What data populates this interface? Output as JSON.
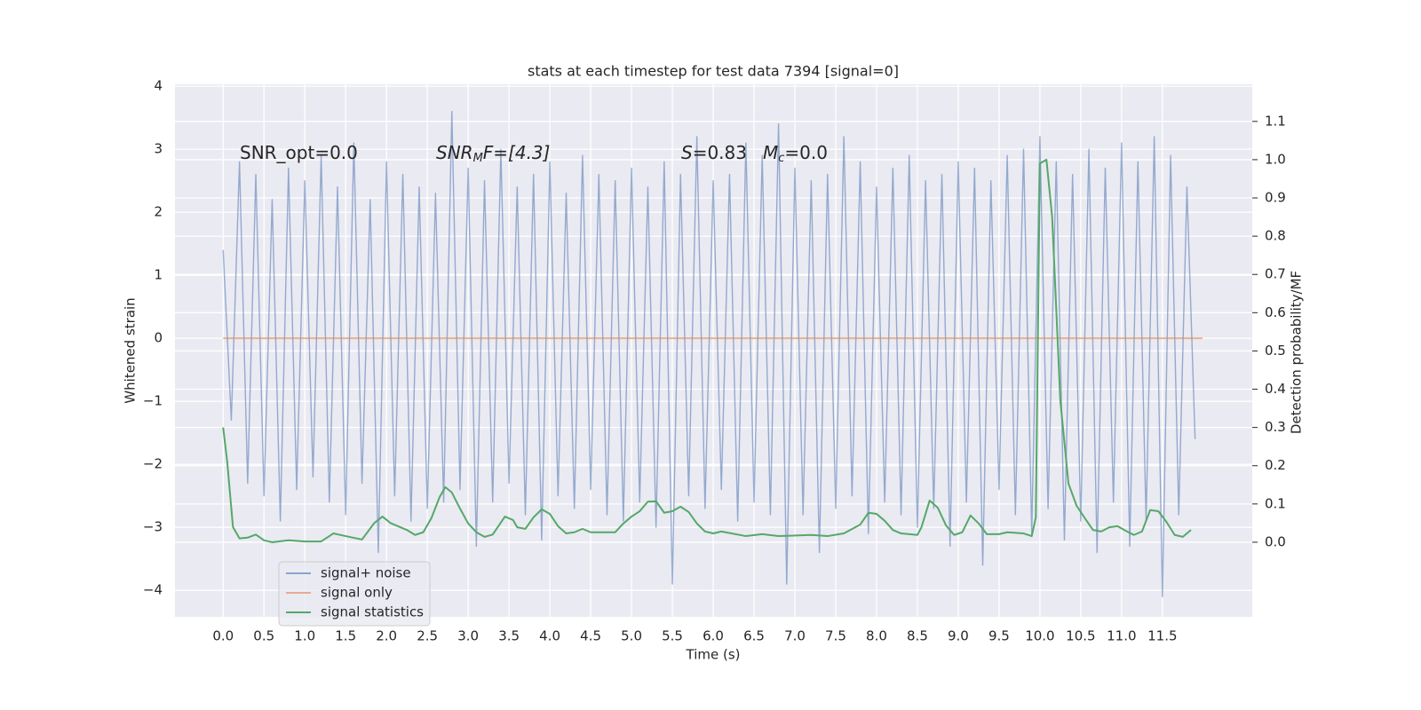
{
  "chart_data": {
    "type": "line",
    "title": "stats at each timestep for test data 7394 [signal=0]",
    "xlabel": "Time (s)",
    "ylabel": "Whitened strain",
    "y2label": "Detection probability/MF",
    "xlim": [
      -0.59,
      12.6
    ],
    "ylim": [
      -4.42,
      4.03
    ],
    "y2lim": [
      -0.195,
      1.197
    ],
    "xticks": [
      {
        "value": 0,
        "label": "0.0"
      },
      0.5,
      {
        "value": 1,
        "label": "1.0"
      },
      1.5,
      {
        "value": 2,
        "label": "2.0"
      },
      2.5,
      {
        "value": 3,
        "label": "3.0"
      },
      3.5,
      {
        "value": 4,
        "label": "4.0"
      },
      4.5,
      {
        "value": 5,
        "label": "5.0"
      },
      5.5,
      {
        "value": 6,
        "label": "6.0"
      },
      6.5,
      {
        "value": 7,
        "label": "7.0"
      },
      7.5,
      {
        "value": 8,
        "label": "8.0"
      },
      8.5,
      {
        "value": 9,
        "label": "9.0"
      },
      9.5,
      {
        "value": 10,
        "label": "10.0"
      },
      10.5,
      {
        "value": 11,
        "label": "11.0"
      },
      11.5
    ],
    "yticks": [
      {
        "value": -4,
        "label": "−4"
      },
      {
        "value": -3,
        "label": "−3"
      },
      {
        "value": -2,
        "label": "−2"
      },
      {
        "value": -1,
        "label": "−1"
      },
      0,
      1,
      2,
      3,
      4
    ],
    "y2ticks": [
      {
        "value": 0,
        "label": "0.0"
      },
      0.1,
      0.2,
      0.3,
      0.4,
      0.5,
      0.6,
      0.7,
      0.8,
      0.9,
      {
        "value": 1,
        "label": "1.0"
      },
      1.1
    ],
    "grid": true,
    "legend": "lower left",
    "annotations": [
      {
        "text": "SNR_opt=0.0"
      },
      {
        "text": "SNR",
        "sub": "M",
        "tail": "F=[4.3]"
      },
      {
        "text": "S",
        "tail": "=0.83"
      },
      {
        "text": "M",
        "sub": "c",
        "tail": "=0.0"
      }
    ],
    "series": [
      {
        "name": "signal+ noise",
        "color": "#4c72b0",
        "x": [
          0.0,
          0.1,
          0.2,
          0.3,
          0.4,
          0.5,
          0.6,
          0.7,
          0.8,
          0.9,
          1.0,
          1.1,
          1.2,
          1.3,
          1.4,
          1.5,
          1.6,
          1.7,
          1.8,
          1.9,
          2.0,
          2.1,
          2.2,
          2.3,
          2.4,
          2.5,
          2.6,
          2.7,
          2.8,
          2.9,
          3.0,
          3.1,
          3.2,
          3.3,
          3.4,
          3.5,
          3.6,
          3.7,
          3.8,
          3.9,
          4.0,
          4.1,
          4.2,
          4.3,
          4.4,
          4.5,
          4.6,
          4.7,
          4.8,
          4.9,
          5.0,
          5.1,
          5.2,
          5.3,
          5.4,
          5.5,
          5.6,
          5.7,
          5.8,
          5.9,
          6.0,
          6.1,
          6.2,
          6.3,
          6.4,
          6.5,
          6.6,
          6.7,
          6.8,
          6.9,
          7.0,
          7.1,
          7.2,
          7.3,
          7.4,
          7.5,
          7.6,
          7.7,
          7.8,
          7.9,
          8.0,
          8.1,
          8.2,
          8.3,
          8.4,
          8.5,
          8.6,
          8.7,
          8.8,
          8.9,
          9.0,
          9.1,
          9.2,
          9.3,
          9.4,
          9.5,
          9.6,
          9.7,
          9.8,
          9.9,
          10.0,
          10.1,
          10.2,
          10.3,
          10.4,
          10.5,
          10.6,
          10.7,
          10.8,
          10.9,
          11.0,
          11.1,
          11.2,
          11.3,
          11.4,
          11.5,
          11.6,
          11.7,
          11.8,
          11.9
        ],
        "values": [
          1.4,
          -1.3,
          2.8,
          -2.3,
          2.6,
          -2.5,
          2.2,
          -2.9,
          2.7,
          -2.4,
          2.5,
          -2.2,
          2.9,
          -2.6,
          2.4,
          -2.8,
          3.1,
          -2.3,
          2.2,
          -3.4,
          2.8,
          -2.5,
          2.6,
          -2.9,
          2.4,
          -2.7,
          2.3,
          -2.6,
          3.6,
          -2.4,
          2.7,
          -3.3,
          2.5,
          -2.6,
          3.0,
          -2.3,
          2.4,
          -2.8,
          2.6,
          -3.2,
          2.8,
          -2.5,
          2.3,
          -2.7,
          2.9,
          -2.4,
          2.6,
          -2.8,
          2.5,
          -2.9,
          2.7,
          -2.6,
          2.4,
          -3.0,
          2.8,
          -3.9,
          2.6,
          -2.5,
          3.2,
          -2.7,
          2.5,
          -2.4,
          2.6,
          -2.9,
          3.1,
          -2.6,
          2.9,
          -2.8,
          3.4,
          -3.9,
          2.7,
          -2.8,
          2.5,
          -3.4,
          2.6,
          -2.7,
          3.2,
          -2.5,
          2.8,
          -3.1,
          2.4,
          -2.6,
          2.7,
          -2.8,
          2.9,
          -3.0,
          2.5,
          -2.7,
          2.6,
          -3.3,
          2.8,
          -2.6,
          2.7,
          -3.6,
          2.5,
          -2.4,
          2.9,
          -2.8,
          3.0,
          -3.1,
          3.2,
          -2.7,
          2.8,
          -3.2,
          2.6,
          -2.9,
          3.0,
          -3.4,
          2.7,
          -2.6,
          3.1,
          -3.3,
          2.8,
          -2.9,
          3.2,
          -4.1,
          2.9,
          -2.8,
          2.4,
          -1.6
        ]
      },
      {
        "name": "signal only",
        "color": "#dd8452",
        "x": [
          0.0,
          11.99
        ],
        "values": [
          0,
          0
        ]
      },
      {
        "name": "signal statistics",
        "color": "#55a868",
        "axis": "y2",
        "x": [
          0.0,
          0.05,
          0.12,
          0.2,
          0.3,
          0.4,
          0.5,
          0.6,
          0.8,
          1.0,
          1.2,
          1.35,
          1.5,
          1.7,
          1.85,
          1.95,
          2.05,
          2.25,
          2.35,
          2.45,
          2.55,
          2.65,
          2.72,
          2.8,
          2.9,
          3.0,
          3.1,
          3.2,
          3.3,
          3.45,
          3.55,
          3.6,
          3.7,
          3.8,
          3.9,
          4.0,
          4.1,
          4.2,
          4.3,
          4.4,
          4.5,
          4.8,
          4.9,
          5.0,
          5.1,
          5.2,
          5.3,
          5.4,
          5.5,
          5.6,
          5.7,
          5.8,
          5.9,
          6.0,
          6.1,
          6.4,
          6.6,
          6.8,
          7.2,
          7.4,
          7.6,
          7.8,
          7.9,
          8.0,
          8.1,
          8.2,
          8.3,
          8.5,
          8.55,
          8.65,
          8.75,
          8.85,
          8.95,
          9.05,
          9.15,
          9.25,
          9.35,
          9.5,
          9.6,
          9.8,
          9.9,
          9.95,
          10.0,
          10.08,
          10.15,
          10.25,
          10.35,
          10.45,
          10.55,
          10.65,
          10.75,
          10.85,
          10.95,
          11.05,
          11.15,
          11.25,
          11.35,
          11.45,
          11.55,
          11.65,
          11.75,
          11.85
        ],
        "values": [
          0.3,
          0.21,
          0.04,
          0.01,
          0.012,
          0.02,
          0.005,
          0.0,
          0.005,
          0.002,
          0.002,
          0.023,
          0.016,
          0.007,
          0.05,
          0.067,
          0.05,
          0.032,
          0.019,
          0.026,
          0.063,
          0.118,
          0.144,
          0.13,
          0.088,
          0.049,
          0.026,
          0.014,
          0.02,
          0.067,
          0.058,
          0.039,
          0.035,
          0.065,
          0.086,
          0.074,
          0.042,
          0.023,
          0.026,
          0.035,
          0.026,
          0.026,
          0.049,
          0.067,
          0.081,
          0.106,
          0.107,
          0.077,
          0.081,
          0.093,
          0.079,
          0.049,
          0.028,
          0.023,
          0.028,
          0.016,
          0.021,
          0.016,
          0.019,
          0.016,
          0.023,
          0.046,
          0.077,
          0.074,
          0.056,
          0.032,
          0.023,
          0.019,
          0.039,
          0.109,
          0.09,
          0.044,
          0.019,
          0.026,
          0.07,
          0.049,
          0.021,
          0.021,
          0.026,
          0.023,
          0.016,
          0.065,
          0.99,
          1.0,
          0.85,
          0.37,
          0.153,
          0.095,
          0.063,
          0.032,
          0.028,
          0.039,
          0.042,
          0.03,
          0.019,
          0.028,
          0.084,
          0.081,
          0.053,
          0.019,
          0.014,
          0.032
        ]
      }
    ]
  }
}
